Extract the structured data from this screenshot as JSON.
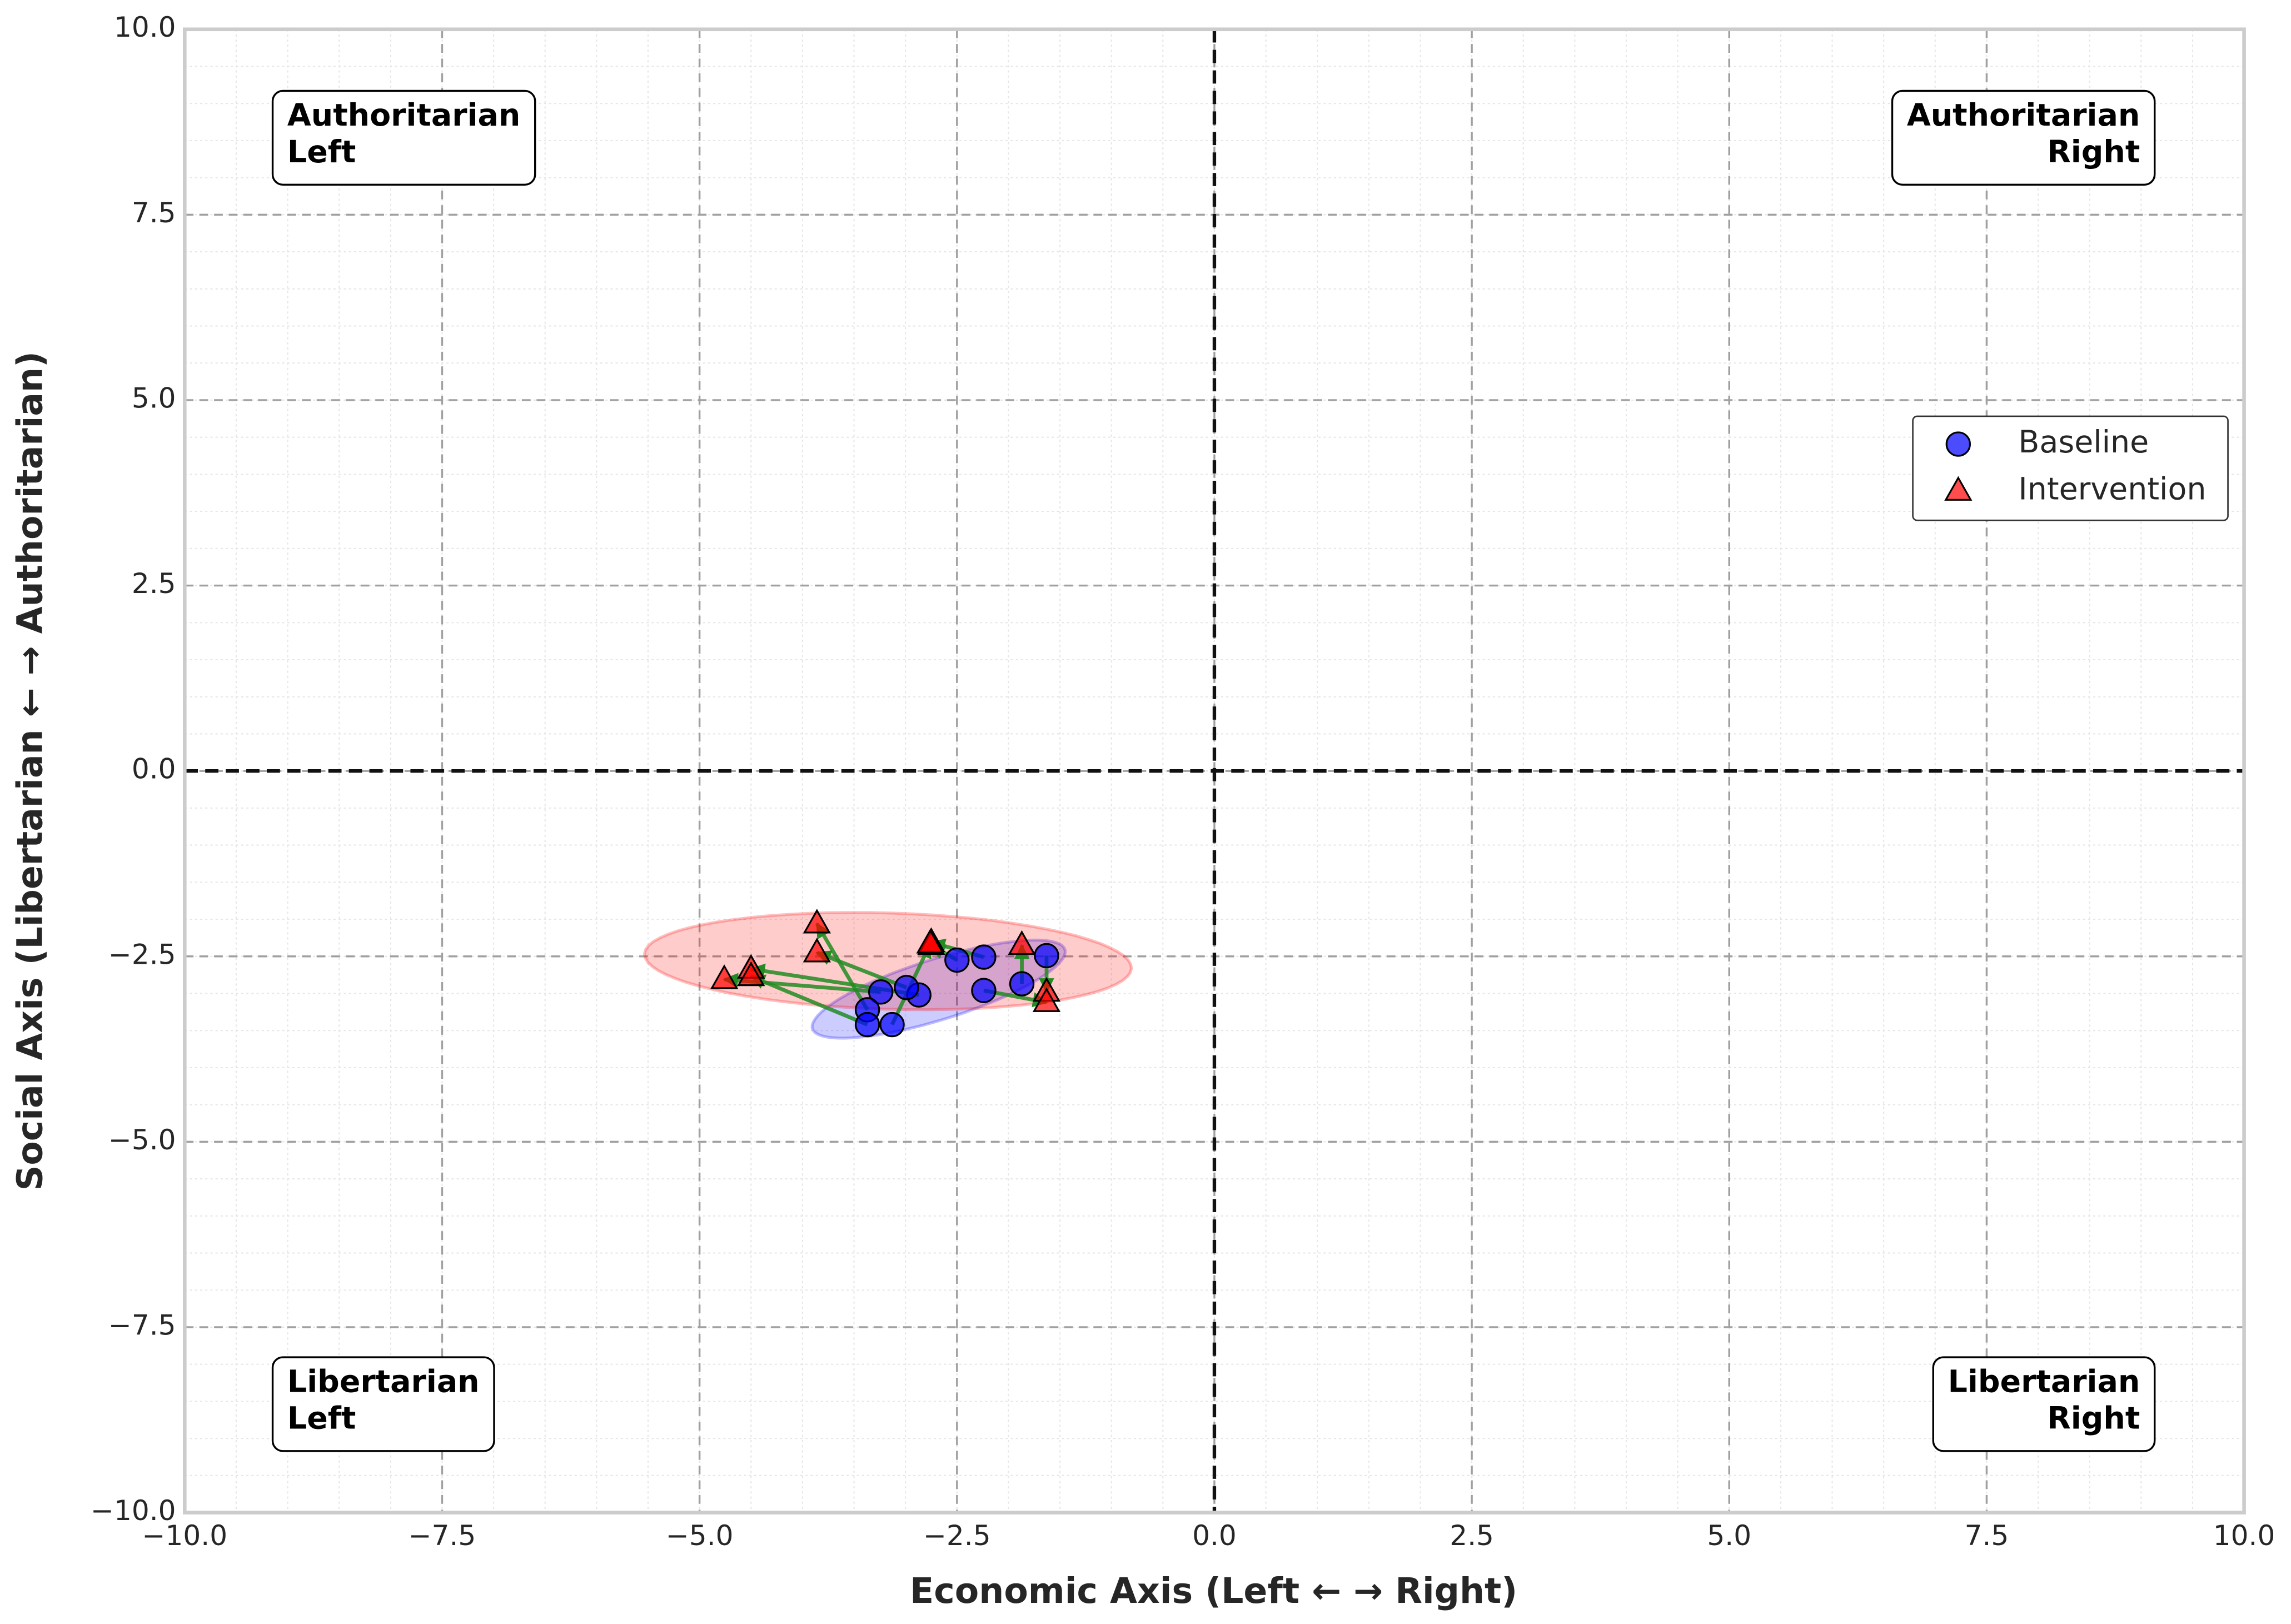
{
  "chart_data": {
    "type": "scatter",
    "xlabel": "Economic Axis (Left ← → Right)",
    "ylabel": "Social Axis (Libertarian ← → Authoritarian)",
    "xlim": [
      -10,
      10
    ],
    "ylim": [
      -10,
      10
    ],
    "xticks": [
      {
        "value": -10,
        "label": "−10.0"
      },
      {
        "value": -7.5,
        "label": "−7.5"
      },
      {
        "value": -5,
        "label": "−5.0"
      },
      {
        "value": -2.5,
        "label": "−2.5"
      },
      {
        "value": 0,
        "label": "0.0"
      },
      {
        "value": 2.5,
        "label": "2.5"
      },
      {
        "value": 5,
        "label": "5.0"
      },
      {
        "value": 7.5,
        "label": "7.5"
      },
      {
        "value": 10,
        "label": "10.0"
      }
    ],
    "yticks": [
      {
        "value": -10,
        "label": "−10.0"
      },
      {
        "value": -7.5,
        "label": "−7.5"
      },
      {
        "value": -5,
        "label": "−5.0"
      },
      {
        "value": -2.5,
        "label": "−2.5"
      },
      {
        "value": 0,
        "label": "0.0"
      },
      {
        "value": 2.5,
        "label": "2.5"
      },
      {
        "value": 5,
        "label": "5.0"
      },
      {
        "value": 7.5,
        "label": "7.5"
      },
      {
        "value": 10,
        "label": "10.0"
      }
    ],
    "grid": true,
    "minor_grid": true,
    "hlines": [
      0
    ],
    "vlines": [
      0
    ],
    "legend": "center right",
    "arrow_color": "#228b22",
    "series": [
      {
        "name": "Baseline",
        "color": "#0000ff",
        "marker": "circle",
        "x": [
          -1.63,
          -1.87,
          -2.24,
          -2.24,
          -2.5,
          -2.87,
          -2.99,
          -3.24,
          -3.37,
          -3.37,
          -3.13
        ],
        "values": [
          -2.49,
          -2.87,
          -2.96,
          -2.51,
          -2.55,
          -3.02,
          -2.92,
          -2.98,
          -3.22,
          -3.42,
          -3.42
        ]
      },
      {
        "name": "Intervention",
        "color": "#ff0000",
        "marker": "triangle",
        "x": [
          -1.63,
          -1.87,
          -1.63,
          -2.75,
          -2.75,
          -4.5,
          -3.86,
          -4.76,
          -3.86,
          -4.5,
          -2.76
        ],
        "values": [
          -2.98,
          -2.35,
          -3.12,
          -2.31,
          -2.35,
          -2.67,
          -2.45,
          -2.81,
          -2.06,
          -2.77,
          -2.33
        ]
      }
    ],
    "annotations": [
      {
        "text": [
          "Authoritarian",
          "Left"
        ],
        "corner": "upper left"
      },
      {
        "text": [
          "Authoritarian",
          "Right"
        ],
        "corner": "upper right"
      },
      {
        "text": [
          "Libertarian",
          "Left"
        ],
        "corner": "lower left"
      },
      {
        "text": [
          "Libertarian",
          "Right"
        ],
        "corner": "lower right"
      }
    ]
  }
}
